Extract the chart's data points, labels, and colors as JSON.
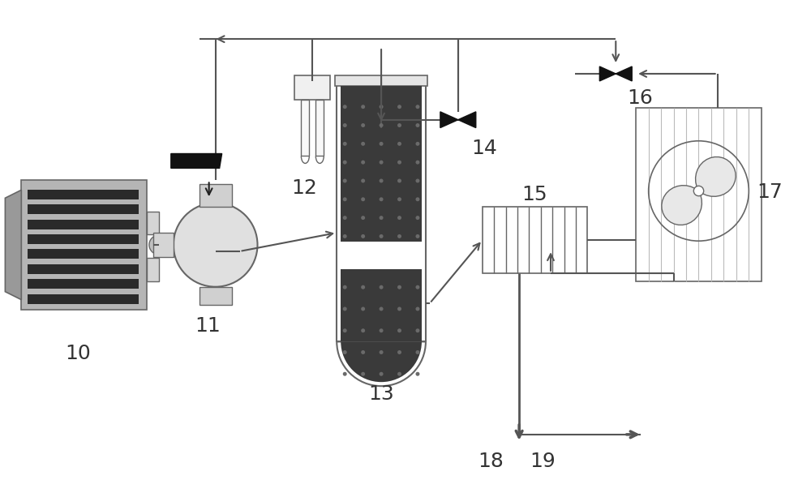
{
  "bg_color": "#ffffff",
  "line_color": "#666666",
  "dark_color": "#222222",
  "gray_color": "#aaaaaa",
  "light_gray": "#cccccc",
  "med_gray": "#888888",
  "label_color": "#333333",
  "pipe_color": "#555555",
  "label_fontsize": 18
}
